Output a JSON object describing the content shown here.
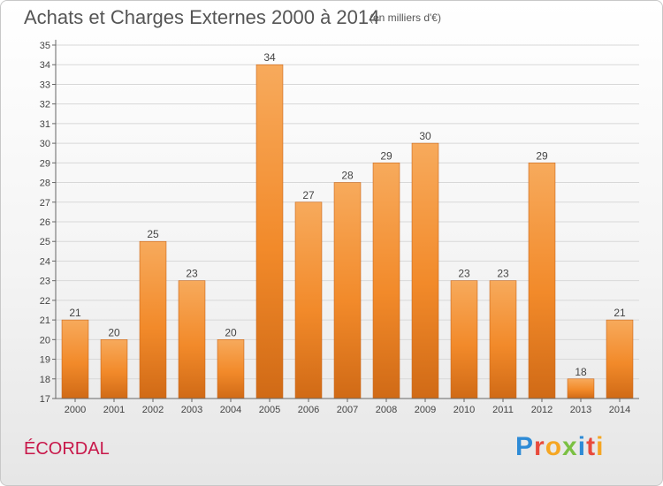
{
  "chart_data": {
    "type": "bar",
    "title": "Achats et Charges Externes 2000 à 2014",
    "subtitle": "(en milliers d'€)",
    "categories": [
      "2000",
      "2001",
      "2002",
      "2003",
      "2004",
      "2005",
      "2006",
      "2007",
      "2008",
      "2009",
      "2010",
      "2011",
      "2012",
      "2013",
      "2014"
    ],
    "values": [
      21,
      20,
      25,
      23,
      20,
      34,
      27,
      28,
      29,
      30,
      23,
      23,
      29,
      18,
      21
    ],
    "ylim": [
      17,
      35
    ],
    "yticks": [
      17,
      18,
      19,
      20,
      21,
      22,
      23,
      24,
      25,
      26,
      27,
      28,
      29,
      30,
      31,
      32,
      33,
      34,
      35
    ],
    "grid": true,
    "legend": "none",
    "bar_color": "#f28a2a",
    "bar_color_dark": "#d06a16",
    "bar_color_light": "#f7aa5c"
  },
  "commune": "ÉCORDAL",
  "logo": {
    "letters": [
      "P",
      "r",
      "o",
      "x",
      "i",
      "t",
      "i"
    ],
    "colors": [
      "#2e8bd6",
      "#e84a3c",
      "#f5a623",
      "#7bc043",
      "#2e8bd6",
      "#e84a3c",
      "#f5a623"
    ]
  }
}
